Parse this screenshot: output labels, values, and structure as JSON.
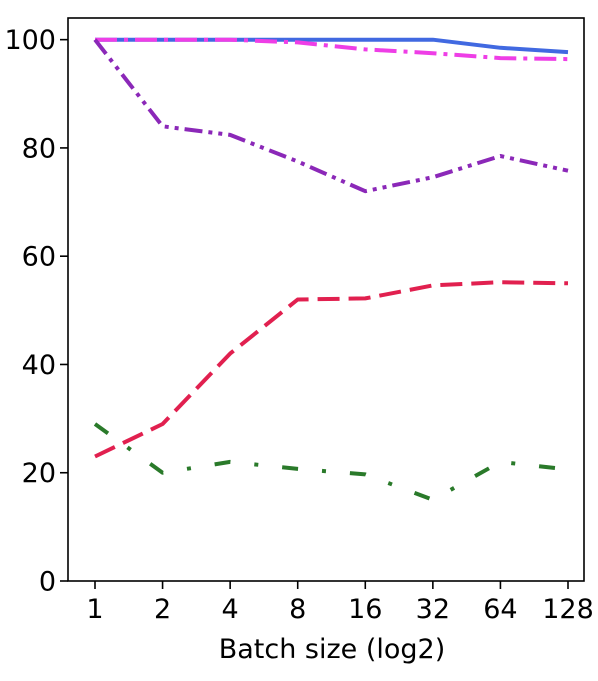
{
  "chart_data": {
    "type": "line",
    "title": "",
    "xlabel": "Batch size (log2)",
    "ylabel": "",
    "x_scale": "log2",
    "x": [
      1,
      2,
      4,
      8,
      16,
      32,
      64,
      128
    ],
    "x_tick_labels": [
      "1",
      "2",
      "4",
      "8",
      "16",
      "32",
      "64",
      "128"
    ],
    "ylim": [
      0,
      104
    ],
    "y_ticks": [
      0,
      20,
      40,
      60,
      80,
      100
    ],
    "y_tick_labels": [
      "0",
      "20",
      "40",
      "60",
      "80",
      "100"
    ],
    "grid": false,
    "legend": "none",
    "series": [
      {
        "values": [
          100,
          100,
          100,
          100,
          100,
          100,
          98.5,
          97.7
        ],
        "color": "#4169e1",
        "line_style": "solid"
      },
      {
        "values": [
          100,
          100,
          100,
          99.5,
          98.2,
          97.5,
          96.6,
          96.4
        ],
        "color": "#ee3ee6",
        "line_style": "dash-dot"
      },
      {
        "values": [
          100,
          84,
          82.4,
          77.5,
          72,
          74.6,
          78.5,
          75.8
        ],
        "color": "#8b28b8",
        "line_style": "dash-dot-dot"
      },
      {
        "values": [
          23,
          29,
          42,
          52,
          52.2,
          54.6,
          55.2,
          55
        ],
        "color": "#e1204f",
        "line_style": "dashed"
      },
      {
        "values": [
          29,
          20,
          22,
          20.7,
          19.7,
          15,
          22,
          20.6
        ],
        "color": "#2a7a2a",
        "line_style": "loose-dash-dot"
      }
    ]
  }
}
